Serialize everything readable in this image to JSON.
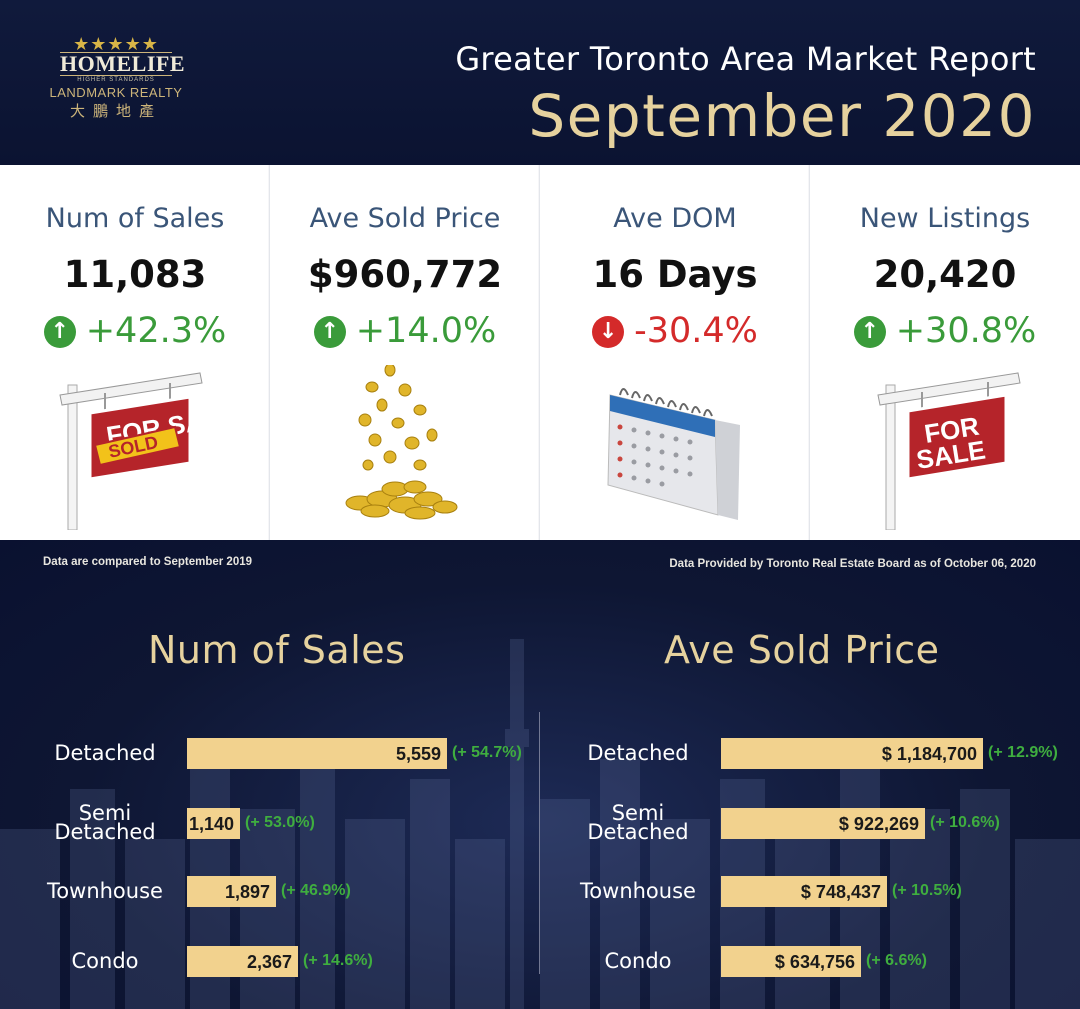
{
  "header": {
    "logo": {
      "stars": "★★★★★",
      "brand": "HOMELIFE",
      "tagline": "HIGHER STANDARDS",
      "company": "LANDMARK REALTY",
      "chinese": "大鵬地產"
    },
    "title": "Greater Toronto Area Market Report",
    "month": "September 2020"
  },
  "cards": [
    {
      "label": "Num of Sales",
      "value": "11,083",
      "change": "+42.3%",
      "direction": "up",
      "icon": "sold-sign-icon",
      "sign_text": "FOR SALE",
      "stamp_text": "SOLD"
    },
    {
      "label": "Ave Sold Price",
      "value": "$960,772",
      "change": "+14.0%",
      "direction": "up",
      "icon": "gold-coins-icon"
    },
    {
      "label": "Ave DOM",
      "value": "16 Days",
      "change": "-30.4%",
      "direction": "down",
      "icon": "calendar-icon"
    },
    {
      "label": "New Listings",
      "value": "20,420",
      "change": "+30.8%",
      "direction": "up",
      "icon": "for-sale-sign-icon",
      "sign_text": "FOR SALE"
    }
  ],
  "notes": {
    "compare": "Data are compared to September 2019",
    "source": "Data Provided by Toronto Real Estate Board as of October 06, 2020"
  },
  "colors": {
    "navy": "#0e1633",
    "gold": "#e6d29e",
    "bar": "#f2d28e",
    "up": "#3a9b3a",
    "down": "#d42a2a"
  },
  "chart_data": [
    {
      "type": "bar",
      "title": "Num of Sales",
      "categories": [
        "Detached",
        "Semi Detached",
        "Townhouse",
        "Condo"
      ],
      "category_lines": [
        [
          "Detached"
        ],
        [
          "Semi",
          "Detached"
        ],
        [
          "Townhouse"
        ],
        [
          "Condo"
        ]
      ],
      "values": [
        5559,
        1140,
        1897,
        2367
      ],
      "value_labels": [
        "5,559",
        "1,140",
        "1,897",
        "2,367"
      ],
      "changes": [
        "(+ 54.7%)",
        "(+ 53.0%)",
        "(+ 46.9%)",
        "(+ 14.6%)"
      ]
    },
    {
      "type": "bar",
      "title": "Ave Sold Price",
      "categories": [
        "Detached",
        "Semi Detached",
        "Townhouse",
        "Condo"
      ],
      "category_lines": [
        [
          "Detached"
        ],
        [
          "Semi",
          "Detached"
        ],
        [
          "Townhouse"
        ],
        [
          "Condo"
        ]
      ],
      "values": [
        1184700,
        922269,
        748437,
        634756
      ],
      "value_labels": [
        "$ 1,184,700",
        "$ 922,269",
        "$ 748,437",
        "$ 634,756"
      ],
      "changes": [
        "(+ 12.9%)",
        "(+ 10.6%)",
        "(+ 10.5%)",
        "(+ 6.6%)"
      ]
    }
  ]
}
